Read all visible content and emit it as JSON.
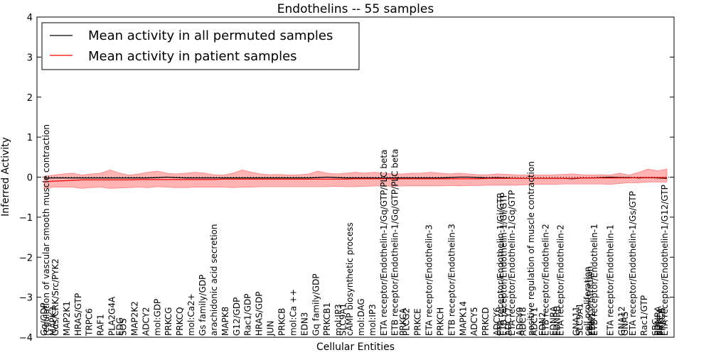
{
  "chart_data": {
    "type": "line",
    "title": "Endothelins -- 55 samples",
    "xlabel": "Cellular Entities",
    "ylabel": "Inferred Activity",
    "ylim": [
      -4,
      4
    ],
    "yticks": [
      -4,
      -3,
      -2,
      -1,
      0,
      1,
      2,
      3,
      4
    ],
    "grid": false,
    "legend_position": "top-left",
    "colors": {
      "permuted": "#000000",
      "patient": "#ff0000",
      "band": "#ff9a9a"
    },
    "series": [
      {
        "name": "Mean activity in all permuted samples",
        "values": [
          -0.02,
          -0.02,
          -0.02,
          -0.02,
          -0.02,
          -0.02,
          -0.02,
          -0.02,
          -0.02,
          -0.02,
          -0.02,
          -0.02,
          -0.01,
          0.0,
          -0.01,
          -0.02,
          -0.02,
          -0.02,
          -0.02,
          -0.02,
          -0.02,
          -0.02,
          -0.02,
          -0.02,
          -0.02,
          -0.02,
          -0.02,
          -0.02,
          -0.02,
          -0.01,
          0.0,
          -0.01,
          -0.02,
          -0.02,
          -0.02,
          -0.02,
          -0.02,
          -0.02,
          -0.02,
          -0.02,
          -0.02,
          -0.02,
          -0.02,
          -0.01,
          0.0,
          0.0,
          -0.01,
          -0.02,
          -0.01,
          -0.02,
          -0.03,
          -0.03,
          -0.03,
          -0.03,
          -0.03,
          -0.03,
          -0.04,
          -0.02,
          -0.02,
          -0.01,
          0.0,
          -0.01,
          -0.01,
          -0.02,
          -0.01,
          -0.02,
          -0.03
        ]
      },
      {
        "name": "Mean activity in patient samples",
        "values": [
          -0.12,
          -0.1,
          -0.09,
          -0.08,
          -0.07,
          -0.07,
          -0.07,
          -0.07,
          -0.07,
          -0.07,
          -0.06,
          -0.06,
          -0.06,
          -0.06,
          -0.06,
          -0.06,
          -0.06,
          -0.06,
          -0.06,
          -0.05,
          -0.05,
          -0.05,
          -0.05,
          -0.05,
          -0.05,
          -0.05,
          -0.05,
          -0.05,
          -0.05,
          -0.05,
          -0.05,
          -0.05,
          -0.05,
          -0.04,
          -0.04,
          -0.04,
          -0.04,
          -0.04,
          -0.04,
          -0.04,
          -0.04,
          -0.04,
          -0.04,
          -0.04,
          -0.04,
          -0.04,
          -0.04,
          -0.03,
          -0.03,
          -0.03,
          -0.03,
          -0.03,
          -0.03,
          -0.03,
          -0.03,
          -0.03,
          -0.03,
          -0.02,
          -0.02,
          -0.02,
          -0.02,
          -0.02,
          -0.02,
          -0.01,
          -0.01,
          -0.01,
          -0.01
        ]
      }
    ],
    "band": {
      "upper": [
        0.02,
        0.05,
        0.08,
        0.1,
        0.05,
        0.08,
        0.1,
        0.18,
        0.1,
        0.05,
        0.08,
        0.12,
        0.15,
        0.1,
        0.08,
        0.1,
        0.12,
        0.1,
        0.06,
        0.05,
        0.1,
        0.18,
        0.12,
        0.08,
        0.06,
        0.07,
        0.05,
        0.06,
        0.08,
        0.15,
        0.1,
        0.08,
        0.1,
        0.12,
        0.1,
        0.12,
        0.1,
        0.08,
        0.08,
        0.1,
        0.1,
        0.12,
        0.1,
        0.08,
        0.1,
        0.08,
        0.06,
        0.06,
        0.08,
        0.07,
        0.06,
        0.05,
        0.06,
        0.05,
        0.06,
        0.07,
        0.08,
        0.06,
        0.05,
        0.06,
        0.05,
        0.1,
        0.05,
        0.12,
        0.2,
        0.16,
        0.2
      ],
      "lower": [
        -0.28,
        -0.25,
        -0.25,
        -0.25,
        -0.28,
        -0.26,
        -0.25,
        -0.28,
        -0.27,
        -0.26,
        -0.25,
        -0.26,
        -0.24,
        -0.25,
        -0.26,
        -0.26,
        -0.25,
        -0.25,
        -0.25,
        -0.25,
        -0.26,
        -0.25,
        -0.25,
        -0.24,
        -0.24,
        -0.24,
        -0.24,
        -0.24,
        -0.24,
        -0.24,
        -0.24,
        -0.23,
        -0.24,
        -0.24,
        -0.23,
        -0.22,
        -0.22,
        -0.23,
        -0.22,
        -0.22,
        -0.22,
        -0.22,
        -0.22,
        -0.21,
        -0.22,
        -0.21,
        -0.21,
        -0.2,
        -0.2,
        -0.2,
        -0.2,
        -0.19,
        -0.18,
        -0.18,
        -0.18,
        -0.17,
        -0.17,
        -0.17,
        -0.17,
        -0.17,
        -0.18,
        -0.16,
        -0.14,
        -0.14,
        -0.12,
        -0.12,
        -0.12
      ]
    },
    "entities": [
      {
        "label": "Gq/GDP",
        "x": 0
      },
      {
        "label": "regulation of vascular smooth muscle contraction",
        "x": 0.2
      },
      {
        "label": "MAPK3",
        "x": 0.8
      },
      {
        "label": "Gαs/CRK/Src/PYK2",
        "x": 1
      },
      {
        "label": "MAP2K1",
        "x": 2
      },
      {
        "label": "HRAS/GTP",
        "x": 3
      },
      {
        "label": "TRPC6",
        "x": 4
      },
      {
        "label": "RAF1",
        "x": 5
      },
      {
        "label": "PLA2G4A",
        "x": 6
      },
      {
        "label": "EDG",
        "x": 6.7
      },
      {
        "label": "SOS",
        "x": 7
      },
      {
        "label": "MAP2K2",
        "x": 8
      },
      {
        "label": "ADCY2",
        "x": 9
      },
      {
        "label": "mol:GDP",
        "x": 10
      },
      {
        "label": "PRKCG",
        "x": 11
      },
      {
        "label": "PRKCQ",
        "x": 12
      },
      {
        "label": "mol:Ca2+",
        "x": 13
      },
      {
        "label": "Gs family/GDP",
        "x": 14
      },
      {
        "label": "arachidonic acid secretion",
        "x": 15
      },
      {
        "label": "MAPK8",
        "x": 16
      },
      {
        "label": "G12/GDP",
        "x": 17
      },
      {
        "label": "Rac1/GDP",
        "x": 18
      },
      {
        "label": "HRAS/GDP",
        "x": 19
      },
      {
        "label": "JUN",
        "x": 20
      },
      {
        "label": "PRKCB",
        "x": 21
      },
      {
        "label": "mol:Ca ++",
        "x": 22
      },
      {
        "label": "EDN3",
        "x": 23
      },
      {
        "label": "Gq family/GDP",
        "x": 24
      },
      {
        "label": "PRKCB1",
        "x": 25
      },
      {
        "label": "mol:IP3",
        "x": 26
      },
      {
        "label": "SLC9A1",
        "x": 26.4
      },
      {
        "label": "cAMP biosynthetic process",
        "x": 27
      },
      {
        "label": "mol:DAG",
        "x": 28
      },
      {
        "label": "mol:IP3",
        "x": 29
      },
      {
        "label": "ETA receptor/Endothelin-1/Gq/GTP/PLC beta",
        "x": 30
      },
      {
        "label": "ETB receptor/Endothelin-1/Gq/GTP/PLC beta",
        "x": 31
      },
      {
        "label": "PRKCA",
        "x": 31.7
      },
      {
        "label": "PLCG2",
        "x": 32
      },
      {
        "label": "PRKCE",
        "x": 33
      },
      {
        "label": "ETA receptor/Endothelin-3",
        "x": 34
      },
      {
        "label": "PRKCH",
        "x": 35
      },
      {
        "label": "ETB receptor/Endothelin-3",
        "x": 36
      },
      {
        "label": "MAPK14",
        "x": 37
      },
      {
        "label": "ADCY5",
        "x": 38
      },
      {
        "label": "PRKCD",
        "x": 39
      },
      {
        "label": "ADCY6",
        "x": 40
      },
      {
        "label": "ETA receptor/Endothelin-1/Gi/GTP",
        "x": 40.3
      },
      {
        "label": "ETB receptor/Endothelin-1/Gi/GTP",
        "x": 40.6
      },
      {
        "label": "ADCY7",
        "x": 41
      },
      {
        "label": "ETA receptor/Endothelin-1/Gq/GTP",
        "x": 41.3
      },
      {
        "label": "ADCY9",
        "x": 42
      },
      {
        "label": "ADCY8",
        "x": 42.3
      },
      {
        "label": "positive regulation of muscle contraction",
        "x": 43
      },
      {
        "label": "ADCY1",
        "x": 43.3
      },
      {
        "label": "EDN2",
        "x": 44
      },
      {
        "label": "ETB receptor/Endothelin-2",
        "x": 44.3
      },
      {
        "label": "EDNRA",
        "x": 45
      },
      {
        "label": "EDNRB",
        "x": 45.3
      },
      {
        "label": "ETA receptor/Endothelin-2",
        "x": 45.6
      },
      {
        "label": "GNA11",
        "x": 47
      },
      {
        "label": "SLC9A1",
        "x": 47.3
      },
      {
        "label": "cell proliferation",
        "x": 48
      },
      {
        "label": "vasoconstriction",
        "x": 48.2
      },
      {
        "label": "EDN1",
        "x": 48.4
      },
      {
        "label": "ETB receptor/Endothelin-1",
        "x": 48.6
      },
      {
        "label": "ETA receptor/Endothelin-1",
        "x": 50
      },
      {
        "label": "GNA12",
        "x": 51
      },
      {
        "label": "GNAS",
        "x": 51.3
      },
      {
        "label": "ETA receptor/Endothelin-1/Gs/GTP",
        "x": 52
      },
      {
        "label": "Rac1/GTP",
        "x": 53
      },
      {
        "label": "SRC",
        "x": 54
      },
      {
        "label": "EDNRA",
        "x": 54.2
      },
      {
        "label": "PRKCA",
        "x": 54.4
      },
      {
        "label": "PRKCB",
        "x": 54.6
      },
      {
        "label": "ETA receptor/Endothelin-1/G12/GTP",
        "x": 54.8
      }
    ]
  }
}
